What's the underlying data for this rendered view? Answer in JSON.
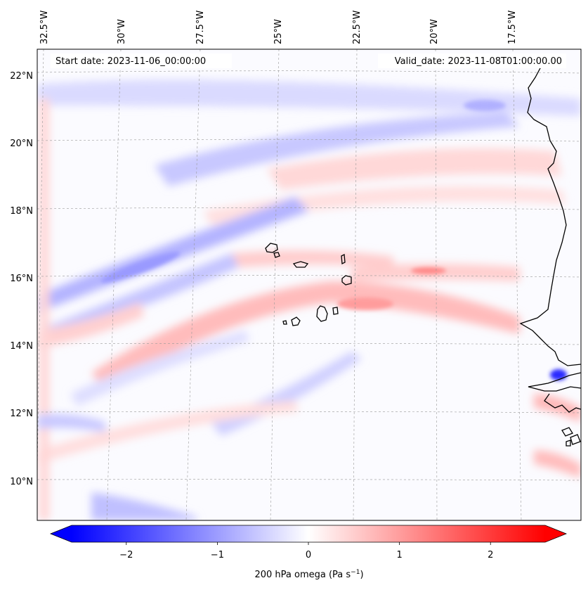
{
  "map": {
    "start_date": "Start date: 2023-11-06_00:00:00",
    "valid_date": "Valid_date: 2023-11-08T01:00:00.00",
    "lon_labels": [
      "32.5°W",
      "30°W",
      "27.5°W",
      "25°W",
      "22.5°W",
      "20°W",
      "17.5°W"
    ],
    "lat_labels": [
      "22°N",
      "20°N",
      "18°N",
      "16°N",
      "14°N",
      "12°N",
      "10°N"
    ],
    "features": [
      "Cape Verde islands",
      "West African coastline (Senegal, Gambia, Guinea-Bissau)"
    ]
  },
  "colorbar": {
    "label": "200 hPa omega (Pa s",
    "label_exp": "−1",
    "label_close": ")",
    "ticks": [
      "−2",
      "−1",
      "0",
      "1",
      "2"
    ],
    "tick_values": [
      -2,
      -1,
      0,
      1,
      2
    ],
    "range": [
      -2.6,
      2.6
    ],
    "colormap": "bwr",
    "low_color": "#0000ff",
    "mid_color": "#ffffff",
    "high_color": "#ff0000"
  }
}
